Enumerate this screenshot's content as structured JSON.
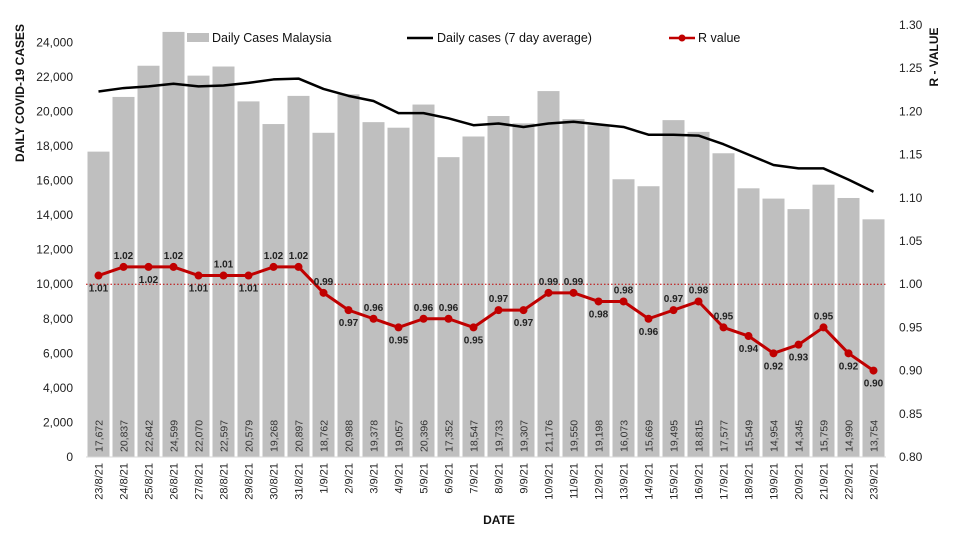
{
  "chart_data": {
    "type": "bar",
    "categories": [
      "23/8/21",
      "24/8/21",
      "25/8/21",
      "26/8/21",
      "27/8/21",
      "28/8/21",
      "29/8/21",
      "30/8/21",
      "31/8/21",
      "1/9/21",
      "2/9/21",
      "3/9/21",
      "4/9/21",
      "5/9/21",
      "6/9/21",
      "7/9/21",
      "8/9/21",
      "9/9/21",
      "10/9/21",
      "11/9/21",
      "12/9/21",
      "13/9/21",
      "14/9/21",
      "15/9/21",
      "16/9/21",
      "17/9/21",
      "18/9/21",
      "19/9/21",
      "20/9/21",
      "21/9/21",
      "22/9/21",
      "23/9/21"
    ],
    "series": [
      {
        "name": "Daily Cases Malaysia",
        "type": "bar",
        "axis": "left",
        "color": "#bfbfbf",
        "values": [
          17672,
          20837,
          22642,
          24599,
          22070,
          22597,
          20579,
          19268,
          20897,
          18762,
          20988,
          19378,
          19057,
          20396,
          17352,
          18547,
          19733,
          19307,
          21176,
          19550,
          19198,
          16073,
          15669,
          19495,
          18815,
          17577,
          15549,
          14954,
          14345,
          15759,
          14990,
          13754
        ],
        "labels": [
          "17,672",
          "20,837",
          "22,642",
          "24,599",
          "22,070",
          "22,597",
          "20,579",
          "19,268",
          "20,897",
          "18,762",
          "20,988",
          "19,378",
          "19,057",
          "20,396",
          "17,352",
          "18,547",
          "19,733",
          "19,307",
          "21,176",
          "19,550",
          "19,198",
          "16,073",
          "15,669",
          "19,495",
          "18,815",
          "17,577",
          "15,549",
          "14,954",
          "14,345",
          "15,759",
          "14,990",
          "13,754"
        ]
      },
      {
        "name": "Daily cases (7 day average)",
        "type": "line",
        "axis": "left",
        "color": "#000000",
        "values": [
          21150,
          21350,
          21450,
          21600,
          21450,
          21500,
          21650,
          21850,
          21900,
          21300,
          20900,
          20600,
          19900,
          19900,
          19600,
          19200,
          19300,
          19100,
          19300,
          19400,
          19250,
          19100,
          18650,
          18650,
          18600,
          18100,
          17500,
          16900,
          16700,
          16700,
          16050,
          15350
        ]
      },
      {
        "name": "R value",
        "type": "line",
        "axis": "right",
        "color": "#c00000",
        "values": [
          1.01,
          1.02,
          1.02,
          1.02,
          1.01,
          1.01,
          1.01,
          1.02,
          1.02,
          0.99,
          0.97,
          0.96,
          0.95,
          0.96,
          0.96,
          0.95,
          0.97,
          0.97,
          0.99,
          0.99,
          0.98,
          0.98,
          0.96,
          0.97,
          0.98,
          0.95,
          0.94,
          0.92,
          0.93,
          0.95,
          0.92,
          0.9
        ],
        "labels": [
          "1.01",
          "1.02",
          "1.02",
          "1.02",
          "1.01",
          "1.01",
          "1.01",
          "1.02",
          "1.02",
          "0.99",
          "0.97",
          "0.96",
          "0.95",
          "0.96",
          "0.96",
          "0.95",
          "0.97",
          "0.97",
          "0.99",
          "0.99",
          "0.98",
          "0.98",
          "0.96",
          "0.97",
          "0.98",
          "0.95",
          "0.94",
          "0.92",
          "0.93",
          "0.95",
          "0.92",
          "0.90"
        ]
      }
    ],
    "reference_line": {
      "axis": "right",
      "value": 1.0,
      "color": "#c00000",
      "style": "dotted"
    },
    "xlabel": "DATE",
    "ylabel": "DAILY COVID-19 CASES",
    "y2label": "R - VALUE",
    "ylim": [
      0,
      25000
    ],
    "y2lim": [
      0.8,
      1.3
    ],
    "yticks": [
      "0",
      "2,000",
      "4,000",
      "6,000",
      "8,000",
      "10,000",
      "12,000",
      "14,000",
      "16,000",
      "18,000",
      "20,000",
      "22,000",
      "24,000"
    ],
    "y2ticks": [
      "0.80",
      "0.85",
      "0.90",
      "0.95",
      "1.00",
      "1.05",
      "1.10",
      "1.15",
      "1.20",
      "1.25",
      "1.30"
    ],
    "legend": {
      "position": "top",
      "entries": [
        "Daily Cases Malaysia",
        "Daily cases (7 day average)",
        "R value"
      ]
    },
    "grid": false
  }
}
